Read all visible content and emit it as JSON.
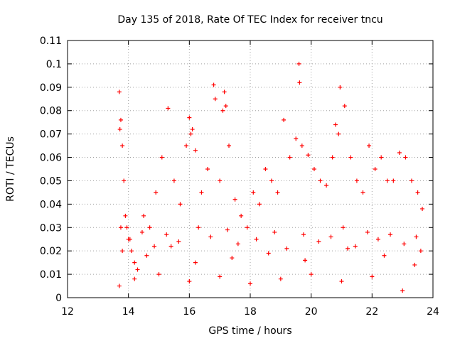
{
  "chart_data": {
    "type": "scatter",
    "title": "Day 135 of 2018, Rate Of TEC Index for receiver tncu",
    "xlabel": "GPS time / hours",
    "ylabel": "ROTI / TECUs",
    "xlim": [
      12,
      24
    ],
    "ylim": [
      0,
      0.11
    ],
    "xticks": [
      12,
      14,
      16,
      18,
      20,
      22,
      24
    ],
    "xtick_labels": [
      "12",
      "14",
      "16",
      "18",
      "20",
      "22",
      "24"
    ],
    "yticks": [
      0,
      0.01,
      0.02,
      0.03,
      0.04,
      0.05,
      0.06,
      0.07,
      0.08,
      0.09,
      0.1,
      0.11
    ],
    "ytick_labels": [
      "0",
      "0.01",
      "0.02",
      "0.03",
      "0.04",
      "0.05",
      "0.06",
      "0.07",
      "0.08",
      "0.09",
      "0.1",
      "0.11"
    ],
    "grid": true,
    "marker": "+",
    "color": "#ff0000",
    "series": [
      {
        "name": "ROTI",
        "x": [
          13.7,
          13.72,
          13.75,
          13.8,
          13.85,
          13.9,
          13.95,
          14.0,
          14.1,
          14.2,
          14.3,
          14.5,
          14.7,
          14.9,
          15.1,
          15.3,
          15.5,
          15.7,
          15.9,
          16.0,
          16.05,
          16.1,
          16.2,
          16.4,
          16.6,
          16.8,
          16.85,
          17.0,
          17.1,
          17.15,
          17.2,
          17.3,
          17.5,
          17.7,
          17.9,
          18.1,
          18.3,
          18.5,
          18.7,
          18.9,
          19.1,
          19.3,
          19.5,
          19.6,
          19.62,
          19.7,
          19.9,
          20.1,
          20.3,
          20.5,
          20.7,
          20.8,
          20.9,
          20.95,
          21.1,
          21.3,
          21.5,
          21.7,
          21.9,
          22.1,
          22.3,
          22.5,
          22.7,
          22.9,
          23.1,
          23.3,
          23.5,
          23.65,
          13.7,
          14.2,
          15.0,
          16.0,
          17.0,
          18.0,
          19.0,
          20.0,
          21.0,
          22.0,
          23.0,
          13.8,
          14.6,
          15.4,
          16.2,
          17.4,
          18.6,
          19.8,
          21.2,
          22.4,
          23.4,
          13.75,
          14.05,
          14.45,
          14.85,
          15.25,
          15.65,
          16.3,
          16.7,
          17.25,
          17.6,
          18.2,
          18.8,
          19.2,
          19.75,
          20.25,
          20.65,
          21.05,
          21.45,
          21.85,
          22.2,
          22.6,
          23.05,
          23.45,
          23.6
        ],
        "y": [
          0.088,
          0.072,
          0.076,
          0.065,
          0.05,
          0.035,
          0.03,
          0.025,
          0.02,
          0.015,
          0.012,
          0.035,
          0.03,
          0.045,
          0.06,
          0.081,
          0.05,
          0.04,
          0.065,
          0.077,
          0.07,
          0.072,
          0.063,
          0.045,
          0.055,
          0.091,
          0.085,
          0.05,
          0.08,
          0.088,
          0.082,
          0.065,
          0.042,
          0.035,
          0.03,
          0.045,
          0.04,
          0.055,
          0.05,
          0.045,
          0.076,
          0.06,
          0.068,
          0.1,
          0.092,
          0.065,
          0.061,
          0.055,
          0.05,
          0.048,
          0.06,
          0.074,
          0.07,
          0.09,
          0.082,
          0.06,
          0.05,
          0.045,
          0.065,
          0.055,
          0.06,
          0.05,
          0.05,
          0.062,
          0.06,
          0.05,
          0.045,
          0.038,
          0.005,
          0.008,
          0.01,
          0.007,
          0.009,
          0.006,
          0.008,
          0.01,
          0.007,
          0.009,
          0.003,
          0.02,
          0.018,
          0.022,
          0.015,
          0.017,
          0.019,
          0.016,
          0.021,
          0.018,
          0.014,
          0.03,
          0.025,
          0.028,
          0.022,
          0.027,
          0.024,
          0.03,
          0.026,
          0.029,
          0.023,
          0.025,
          0.028,
          0.021,
          0.027,
          0.024,
          0.026,
          0.03,
          0.022,
          0.028,
          0.025,
          0.027,
          0.023,
          0.026,
          0.02
        ]
      }
    ]
  }
}
